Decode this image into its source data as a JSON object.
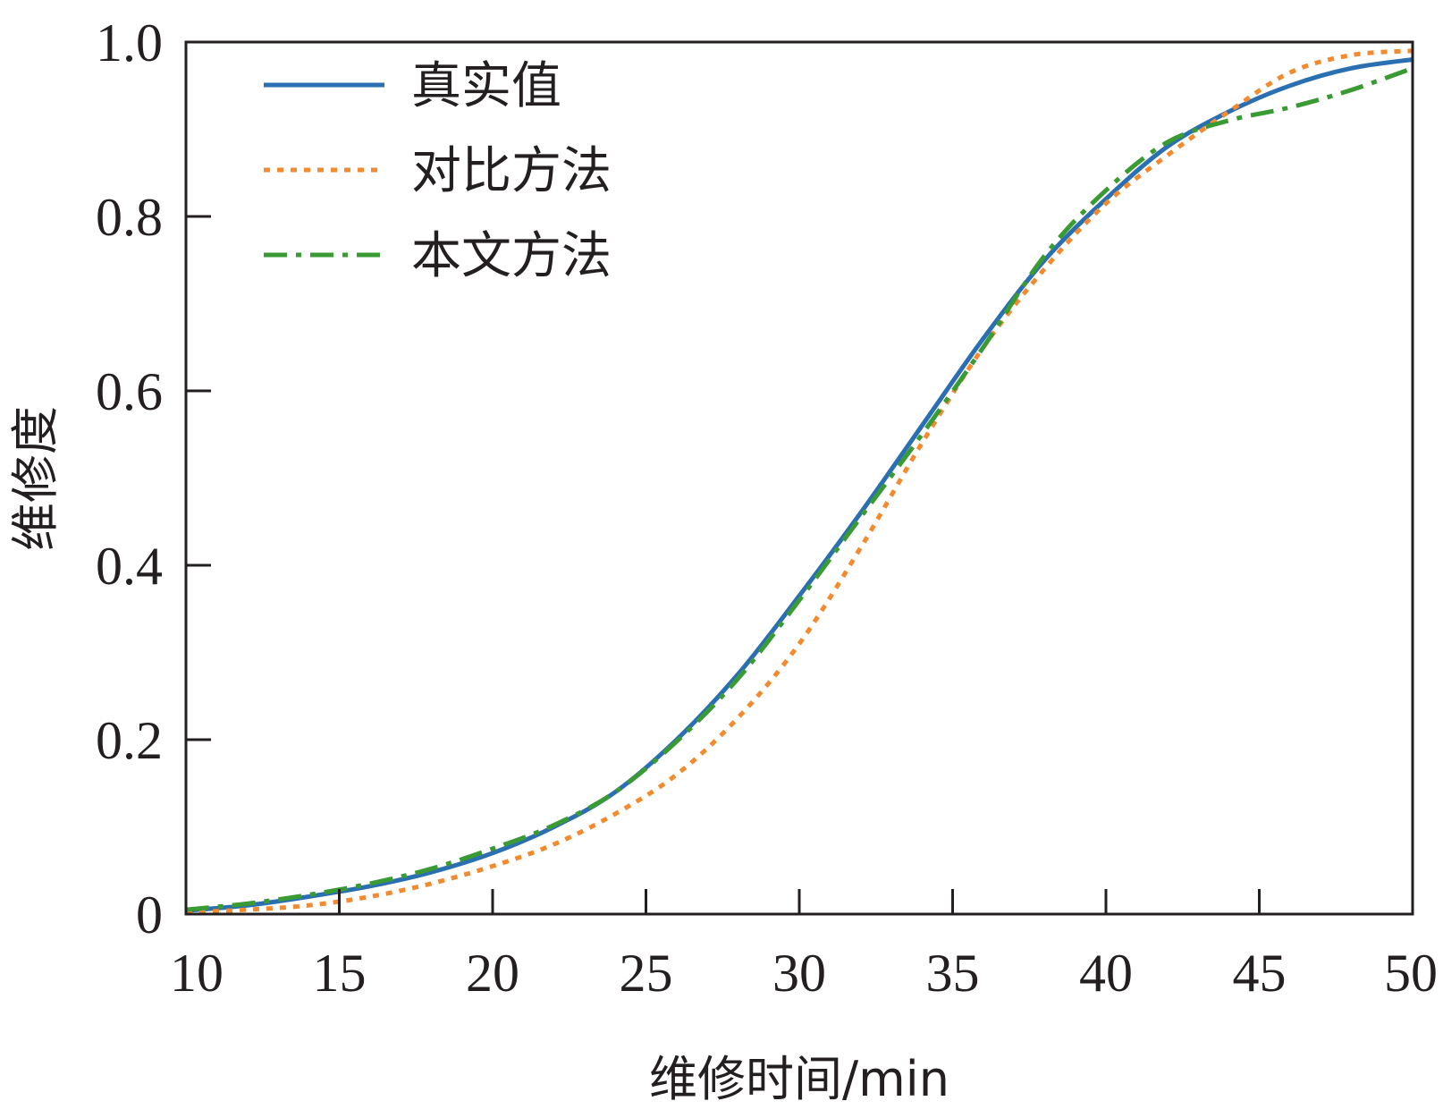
{
  "chart_data": {
    "type": "line",
    "xlabel": "维修时间/min",
    "ylabel": "维修度",
    "xlim": [
      10,
      50
    ],
    "ylim": [
      0,
      1.0
    ],
    "x_ticks": [
      "10",
      "15",
      "20",
      "25",
      "30",
      "35",
      "40",
      "45",
      "50"
    ],
    "y_ticks": [
      "0",
      "0.2",
      "0.4",
      "0.6",
      "0.8",
      "1.0"
    ],
    "grid": false,
    "legend_position": "top-left",
    "x": [
      10,
      12,
      14,
      16,
      18,
      20,
      22,
      24,
      26,
      28,
      30,
      32,
      34,
      36,
      38,
      40,
      42,
      44,
      46,
      48,
      50
    ],
    "series": [
      {
        "name": "真实值",
        "color": "#2b6fb3",
        "style": "solid",
        "values": [
          0.004,
          0.01,
          0.02,
          0.032,
          0.048,
          0.07,
          0.1,
          0.14,
          0.2,
          0.275,
          0.365,
          0.46,
          0.56,
          0.66,
          0.75,
          0.82,
          0.88,
          0.92,
          0.95,
          0.97,
          0.98
        ]
      },
      {
        "name": "对比方法",
        "color": "#f28a2f",
        "style": "dotted",
        "values": [
          0.002,
          0.005,
          0.01,
          0.02,
          0.035,
          0.055,
          0.08,
          0.115,
          0.16,
          0.225,
          0.31,
          0.42,
          0.54,
          0.65,
          0.74,
          0.815,
          0.87,
          0.92,
          0.965,
          0.985,
          0.99
        ]
      },
      {
        "name": "本文方法",
        "color": "#3a9a33",
        "style": "dashdot",
        "values": [
          0.005,
          0.012,
          0.022,
          0.035,
          0.052,
          0.075,
          0.102,
          0.14,
          0.198,
          0.27,
          0.36,
          0.455,
          0.55,
          0.65,
          0.755,
          0.83,
          0.885,
          0.91,
          0.925,
          0.945,
          0.97
        ]
      }
    ]
  }
}
